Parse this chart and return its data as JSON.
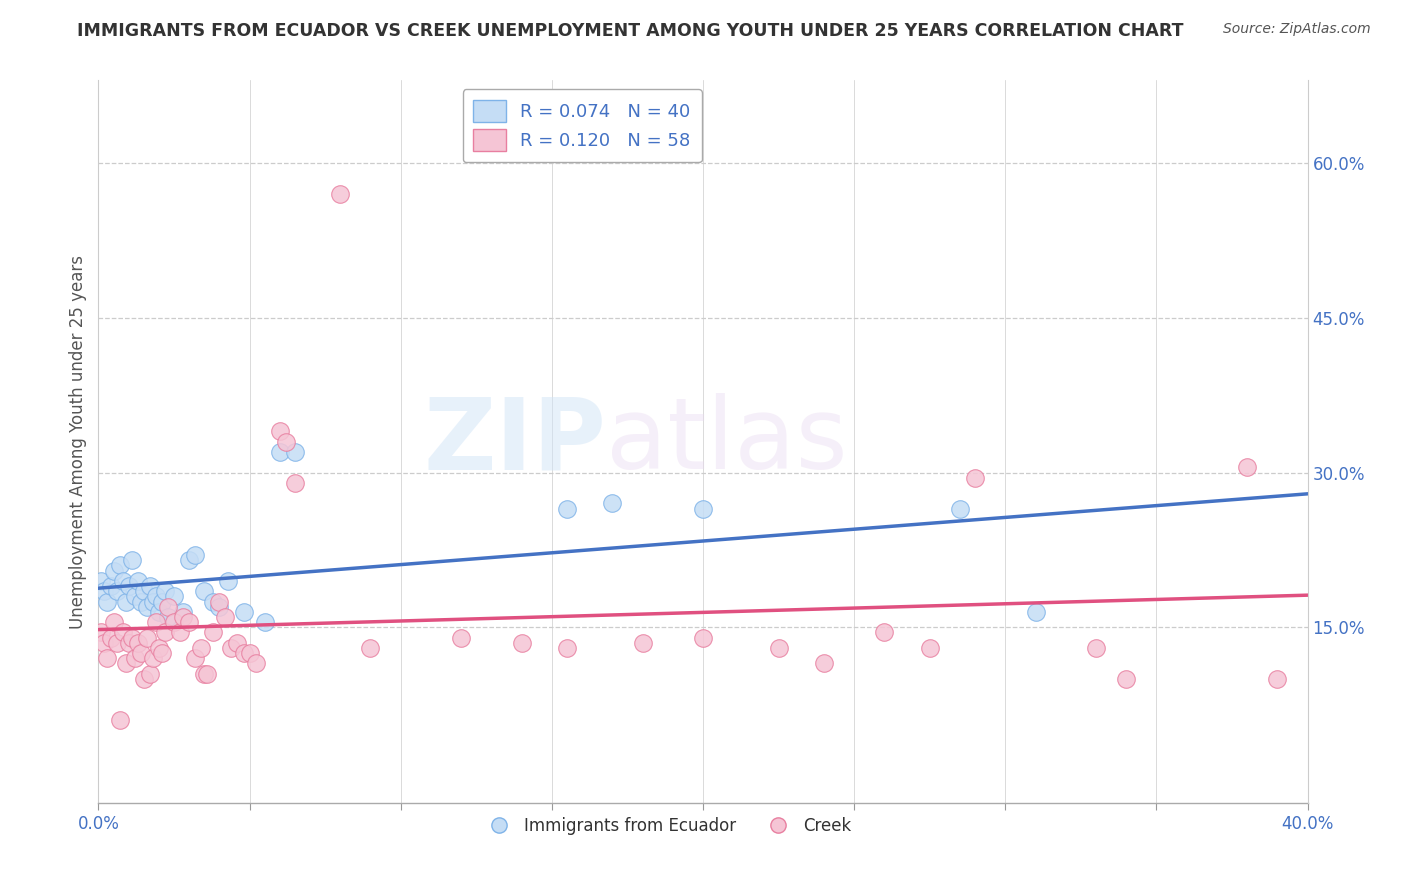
{
  "title": "IMMIGRANTS FROM ECUADOR VS CREEK UNEMPLOYMENT AMONG YOUTH UNDER 25 YEARS CORRELATION CHART",
  "source": "Source: ZipAtlas.com",
  "ylabel": "Unemployment Among Youth under 25 years",
  "xlim": [
    0.0,
    0.4
  ],
  "ylim": [
    -0.02,
    0.68
  ],
  "xtick_positions": [
    0.0,
    0.05,
    0.1,
    0.15,
    0.2,
    0.25,
    0.3,
    0.35,
    0.4
  ],
  "xticklabels_show": {
    "0.0": "0.0%",
    "0.40": "40.0%"
  },
  "right_yticks": [
    0.15,
    0.3,
    0.45,
    0.6
  ],
  "right_yticklabels": [
    "15.0%",
    "30.0%",
    "45.0%",
    "60.0%"
  ],
  "watermark_zip": "ZIP",
  "watermark_atlas": "atlas",
  "legend_r1": "R = 0.074",
  "legend_n1": "N = 40",
  "legend_r2": "R = 0.120",
  "legend_n2": "N = 58",
  "blue_fill": "#c5ddf5",
  "blue_edge": "#7fb3e8",
  "pink_fill": "#f5c5d5",
  "pink_edge": "#e87fa0",
  "blue_line": "#4472C4",
  "pink_line": "#E05080",
  "blue_scatter": [
    [
      0.001,
      0.195
    ],
    [
      0.002,
      0.185
    ],
    [
      0.003,
      0.175
    ],
    [
      0.004,
      0.19
    ],
    [
      0.005,
      0.205
    ],
    [
      0.006,
      0.185
    ],
    [
      0.007,
      0.21
    ],
    [
      0.008,
      0.195
    ],
    [
      0.009,
      0.175
    ],
    [
      0.01,
      0.19
    ],
    [
      0.011,
      0.215
    ],
    [
      0.012,
      0.18
    ],
    [
      0.013,
      0.195
    ],
    [
      0.014,
      0.175
    ],
    [
      0.015,
      0.185
    ],
    [
      0.016,
      0.17
    ],
    [
      0.017,
      0.19
    ],
    [
      0.018,
      0.175
    ],
    [
      0.019,
      0.18
    ],
    [
      0.02,
      0.165
    ],
    [
      0.021,
      0.175
    ],
    [
      0.022,
      0.185
    ],
    [
      0.023,
      0.16
    ],
    [
      0.025,
      0.18
    ],
    [
      0.028,
      0.165
    ],
    [
      0.03,
      0.215
    ],
    [
      0.032,
      0.22
    ],
    [
      0.035,
      0.185
    ],
    [
      0.038,
      0.175
    ],
    [
      0.04,
      0.17
    ],
    [
      0.043,
      0.195
    ],
    [
      0.048,
      0.165
    ],
    [
      0.055,
      0.155
    ],
    [
      0.06,
      0.32
    ],
    [
      0.065,
      0.32
    ],
    [
      0.155,
      0.265
    ],
    [
      0.17,
      0.27
    ],
    [
      0.2,
      0.265
    ],
    [
      0.285,
      0.265
    ],
    [
      0.31,
      0.165
    ]
  ],
  "pink_scatter": [
    [
      0.001,
      0.145
    ],
    [
      0.002,
      0.135
    ],
    [
      0.003,
      0.12
    ],
    [
      0.004,
      0.14
    ],
    [
      0.005,
      0.155
    ],
    [
      0.006,
      0.135
    ],
    [
      0.007,
      0.06
    ],
    [
      0.008,
      0.145
    ],
    [
      0.009,
      0.115
    ],
    [
      0.01,
      0.135
    ],
    [
      0.011,
      0.14
    ],
    [
      0.012,
      0.12
    ],
    [
      0.013,
      0.135
    ],
    [
      0.014,
      0.125
    ],
    [
      0.015,
      0.1
    ],
    [
      0.016,
      0.14
    ],
    [
      0.017,
      0.105
    ],
    [
      0.018,
      0.12
    ],
    [
      0.019,
      0.155
    ],
    [
      0.02,
      0.13
    ],
    [
      0.021,
      0.125
    ],
    [
      0.022,
      0.145
    ],
    [
      0.023,
      0.17
    ],
    [
      0.025,
      0.155
    ],
    [
      0.027,
      0.145
    ],
    [
      0.028,
      0.16
    ],
    [
      0.03,
      0.155
    ],
    [
      0.032,
      0.12
    ],
    [
      0.034,
      0.13
    ],
    [
      0.035,
      0.105
    ],
    [
      0.036,
      0.105
    ],
    [
      0.038,
      0.145
    ],
    [
      0.04,
      0.175
    ],
    [
      0.042,
      0.16
    ],
    [
      0.044,
      0.13
    ],
    [
      0.046,
      0.135
    ],
    [
      0.048,
      0.125
    ],
    [
      0.05,
      0.125
    ],
    [
      0.052,
      0.115
    ],
    [
      0.06,
      0.34
    ],
    [
      0.062,
      0.33
    ],
    [
      0.065,
      0.29
    ],
    [
      0.08,
      0.57
    ],
    [
      0.09,
      0.13
    ],
    [
      0.12,
      0.14
    ],
    [
      0.14,
      0.135
    ],
    [
      0.155,
      0.13
    ],
    [
      0.18,
      0.135
    ],
    [
      0.2,
      0.14
    ],
    [
      0.225,
      0.13
    ],
    [
      0.24,
      0.115
    ],
    [
      0.26,
      0.145
    ],
    [
      0.275,
      0.13
    ],
    [
      0.29,
      0.295
    ],
    [
      0.33,
      0.13
    ],
    [
      0.34,
      0.1
    ],
    [
      0.38,
      0.305
    ],
    [
      0.39,
      0.1
    ]
  ]
}
